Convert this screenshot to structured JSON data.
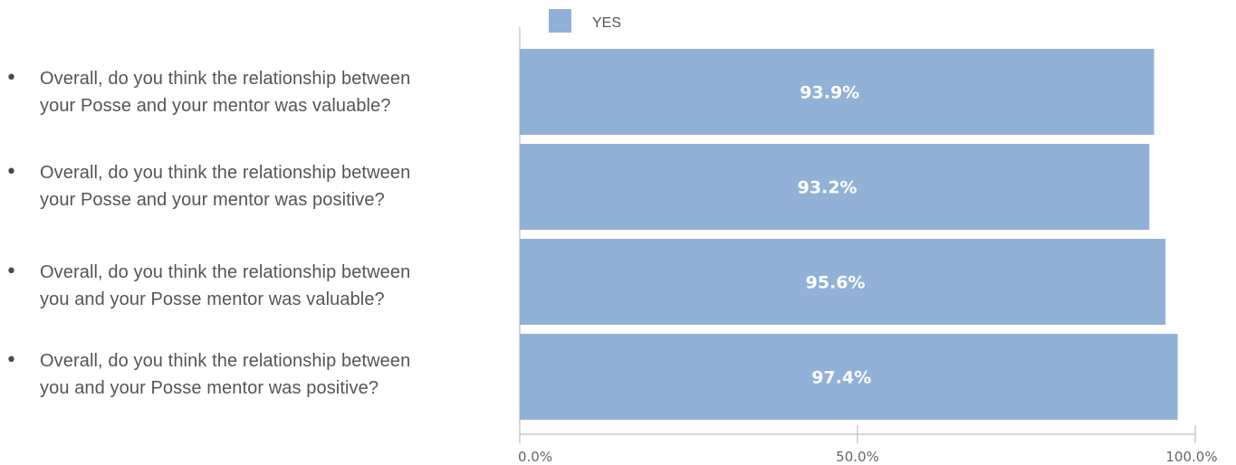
{
  "chart_data": {
    "type": "bar",
    "orientation": "horizontal",
    "categories": [
      "Overall, do you think the relationship between your Posse and your mentor was valuable?",
      "Overall, do you think the relationship between your Posse and your mentor was positive?",
      "Overall, do you think the relationship between you and your Posse mentor was valuable?",
      "Overall, do you think the relationship between you and your Posse mentor was positive?"
    ],
    "series": [
      {
        "name": "YES",
        "values": [
          93.9,
          93.2,
          95.6,
          97.4
        ],
        "labels": [
          "93.9%",
          "93.2%",
          "95.6%",
          "97.4%"
        ],
        "color": "#92b1d7"
      }
    ],
    "xlim": [
      0,
      100
    ],
    "ticks": [
      0,
      50,
      100
    ],
    "tick_labels": [
      "0.0%",
      "50.0%",
      "100.0%"
    ],
    "legend": "top-left",
    "grid": false
  },
  "questions": [
    {
      "line1": "Overall, do you think the relationship between",
      "line2": "your Posse and your mentor was valuable?"
    },
    {
      "line1": "Overall, do you think the relationship between",
      "line2": "your Posse and your mentor was positive?"
    },
    {
      "line1": "Overall, do you think the relationship between",
      "line2": "you and your Posse mentor was valuable?"
    },
    {
      "line1": "Overall, do you think the relationship between",
      "line2": "you and your Posse mentor was positive?"
    }
  ],
  "bullet": "•",
  "colors": {
    "bar": "#92b1d7",
    "axis": "#b0b0b0",
    "text": "#555555"
  }
}
